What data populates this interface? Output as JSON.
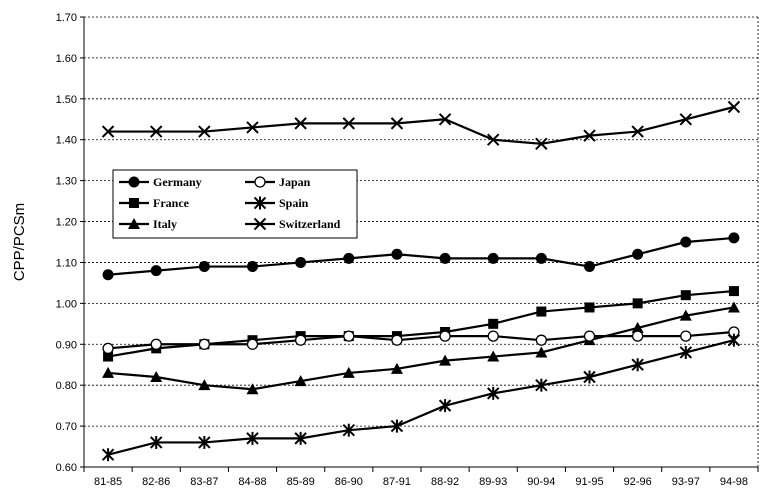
{
  "chart_data": {
    "type": "line",
    "title": "",
    "xlabel": "",
    "ylabel": "CPP/PCSm",
    "ylim": [
      0.6,
      1.7
    ],
    "y_ticks": [
      "0.60",
      "0.70",
      "0.80",
      "0.90",
      "1.00",
      "1.10",
      "1.20",
      "1.30",
      "1.40",
      "1.50",
      "1.60",
      "1.70"
    ],
    "grid": "horizontal",
    "legend_position": "left",
    "categories": [
      "81-85",
      "82-86",
      "83-87",
      "84-88",
      "85-89",
      "86-90",
      "87-91",
      "88-92",
      "89-93",
      "90-94",
      "91-95",
      "92-96",
      "93-97",
      "94-98"
    ],
    "series": [
      {
        "name": "Germany",
        "marker": "filled-circle",
        "values": [
          1.07,
          1.08,
          1.09,
          1.09,
          1.1,
          1.11,
          1.12,
          1.11,
          1.11,
          1.11,
          1.09,
          1.12,
          1.15,
          1.16
        ]
      },
      {
        "name": "France",
        "marker": "filled-square",
        "values": [
          0.87,
          0.89,
          0.9,
          0.91,
          0.92,
          0.92,
          0.92,
          0.93,
          0.95,
          0.98,
          0.99,
          1.0,
          1.02,
          1.03
        ]
      },
      {
        "name": "Italy",
        "marker": "filled-triangle",
        "values": [
          0.83,
          0.82,
          0.8,
          0.79,
          0.81,
          0.83,
          0.84,
          0.86,
          0.87,
          0.88,
          0.91,
          0.94,
          0.97,
          0.99
        ]
      },
      {
        "name": "Japan",
        "marker": "open-circle",
        "values": [
          0.89,
          0.9,
          0.9,
          0.9,
          0.91,
          0.92,
          0.91,
          0.92,
          0.92,
          0.91,
          0.92,
          0.92,
          0.92,
          0.93
        ]
      },
      {
        "name": "Spain",
        "marker": "asterisk",
        "values": [
          0.63,
          0.66,
          0.66,
          0.67,
          0.67,
          0.69,
          0.7,
          0.75,
          0.78,
          0.8,
          0.82,
          0.85,
          0.88,
          0.91
        ]
      },
      {
        "name": "Switzerland",
        "marker": "x",
        "values": [
          1.42,
          1.42,
          1.42,
          1.43,
          1.44,
          1.44,
          1.44,
          1.45,
          1.4,
          1.39,
          1.41,
          1.42,
          1.45,
          1.48
        ]
      }
    ]
  }
}
